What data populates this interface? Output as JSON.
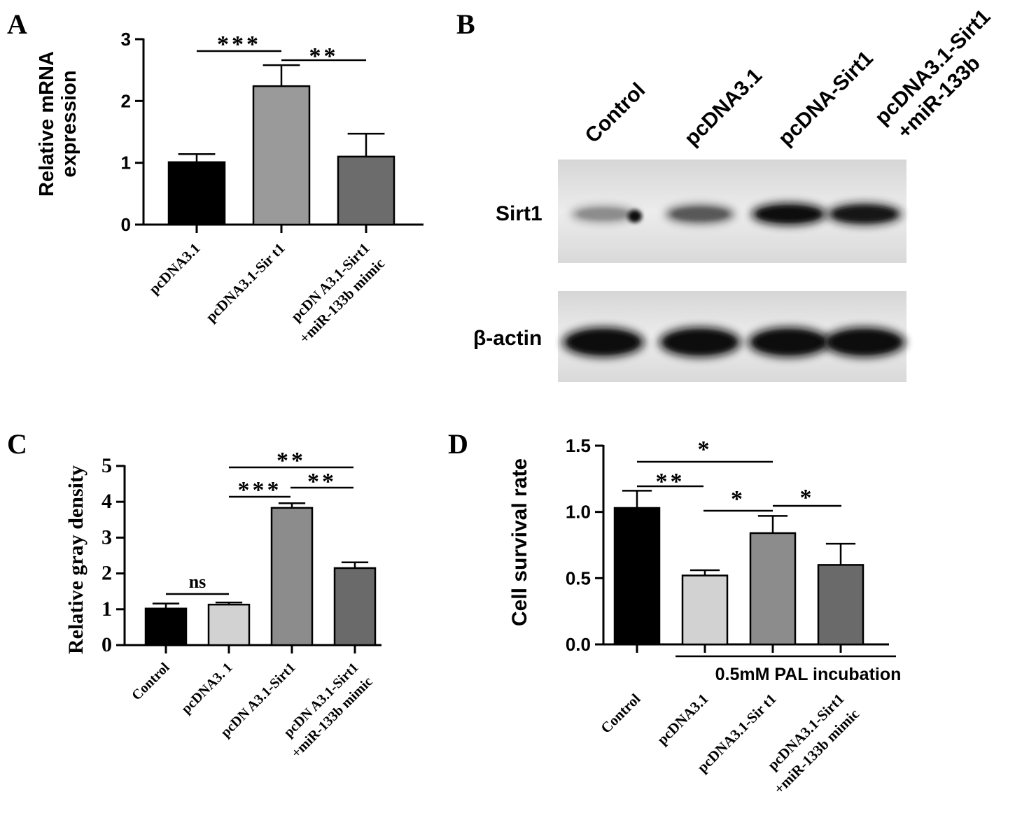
{
  "chart_data": [
    {
      "panel": "A",
      "type": "bar",
      "ylabel": [
        "Relative mRNA",
        "expression"
      ],
      "ylim": [
        0,
        3
      ],
      "yticks": [
        "0",
        "1",
        "2",
        "3"
      ],
      "categories": [
        [
          "pcDNA3.1"
        ],
        [
          "pcDNA3.1-Sir t1"
        ],
        [
          "pcDN A3.1-Sirt1",
          "+miR-133b mimic"
        ]
      ],
      "values": [
        1.01,
        2.24,
        1.1
      ],
      "errors": [
        0.13,
        0.34,
        0.37
      ],
      "colors": [
        "#000000",
        "#9a9a9a",
        "#6c6c6c"
      ],
      "significance": [
        {
          "from": 0,
          "to": 1,
          "label": "***"
        },
        {
          "from": 1,
          "to": 2,
          "label": "**"
        }
      ]
    },
    {
      "panel": "C",
      "type": "bar",
      "ylabel": [
        "Relative gray density"
      ],
      "ylim": [
        0,
        5
      ],
      "yticks": [
        "0",
        "1",
        "2",
        "3",
        "4",
        "5"
      ],
      "categories": [
        [
          "Control"
        ],
        [
          "pcDNA3. 1"
        ],
        [
          "pcDN A3.1-Sirt1"
        ],
        [
          "pcDN A3.1-Sirt1",
          "+miR-133b mimic"
        ]
      ],
      "values": [
        1.02,
        1.13,
        3.83,
        2.15
      ],
      "errors": [
        0.14,
        0.06,
        0.13,
        0.16
      ],
      "colors": [
        "#000000",
        "#d2d2d2",
        "#8c8c8c",
        "#6a6a6a"
      ],
      "significance": [
        {
          "from": 0,
          "to": 1,
          "label": "ns"
        },
        {
          "from": 1,
          "to": 2,
          "label": "***"
        },
        {
          "from": 2,
          "to": 3,
          "label": "**"
        },
        {
          "from": 1,
          "to": 3,
          "label": "**"
        }
      ]
    },
    {
      "panel": "D",
      "type": "bar",
      "ylabel": [
        "Cell survival rate"
      ],
      "ylim": [
        0,
        1.5
      ],
      "yticks": [
        "0.0",
        "0.5",
        "1.0",
        "1.5"
      ],
      "categories": [
        [
          "Control"
        ],
        [
          "pcDNA3.1"
        ],
        [
          "pcDNA3.1-Sir t1"
        ],
        [
          "pcDNA3.1-Sirt1",
          "+miR-133b  mimic"
        ]
      ],
      "values": [
        1.03,
        0.52,
        0.84,
        0.6
      ],
      "errors": [
        0.13,
        0.04,
        0.13,
        0.16
      ],
      "colors": [
        "#000000",
        "#d2d2d2",
        "#8c8c8c",
        "#6a6a6a"
      ],
      "group_label": "0.5mM PAL incubation",
      "significance": [
        {
          "from": 0,
          "to": 1,
          "label": "**"
        },
        {
          "from": 0,
          "to": 2,
          "label": "*"
        },
        {
          "from": 1,
          "to": 2,
          "label": "*"
        },
        {
          "from": 2,
          "to": 3,
          "label": "*"
        }
      ]
    }
  ],
  "panel_labels": [
    "A",
    "B",
    "C",
    "D"
  ],
  "blot": {
    "lanes": [
      "Control",
      "pcDNA3.1",
      "pcDNA-Sirt1",
      "pcDNA3.1-Sirt1",
      "+miR-133b"
    ],
    "rows": [
      {
        "label": "Sirt1",
        "intensities": [
          0.45,
          0.65,
          0.95,
          0.9
        ]
      },
      {
        "label": "β-actin",
        "intensities": [
          0.95,
          0.95,
          0.95,
          0.95
        ]
      }
    ]
  }
}
